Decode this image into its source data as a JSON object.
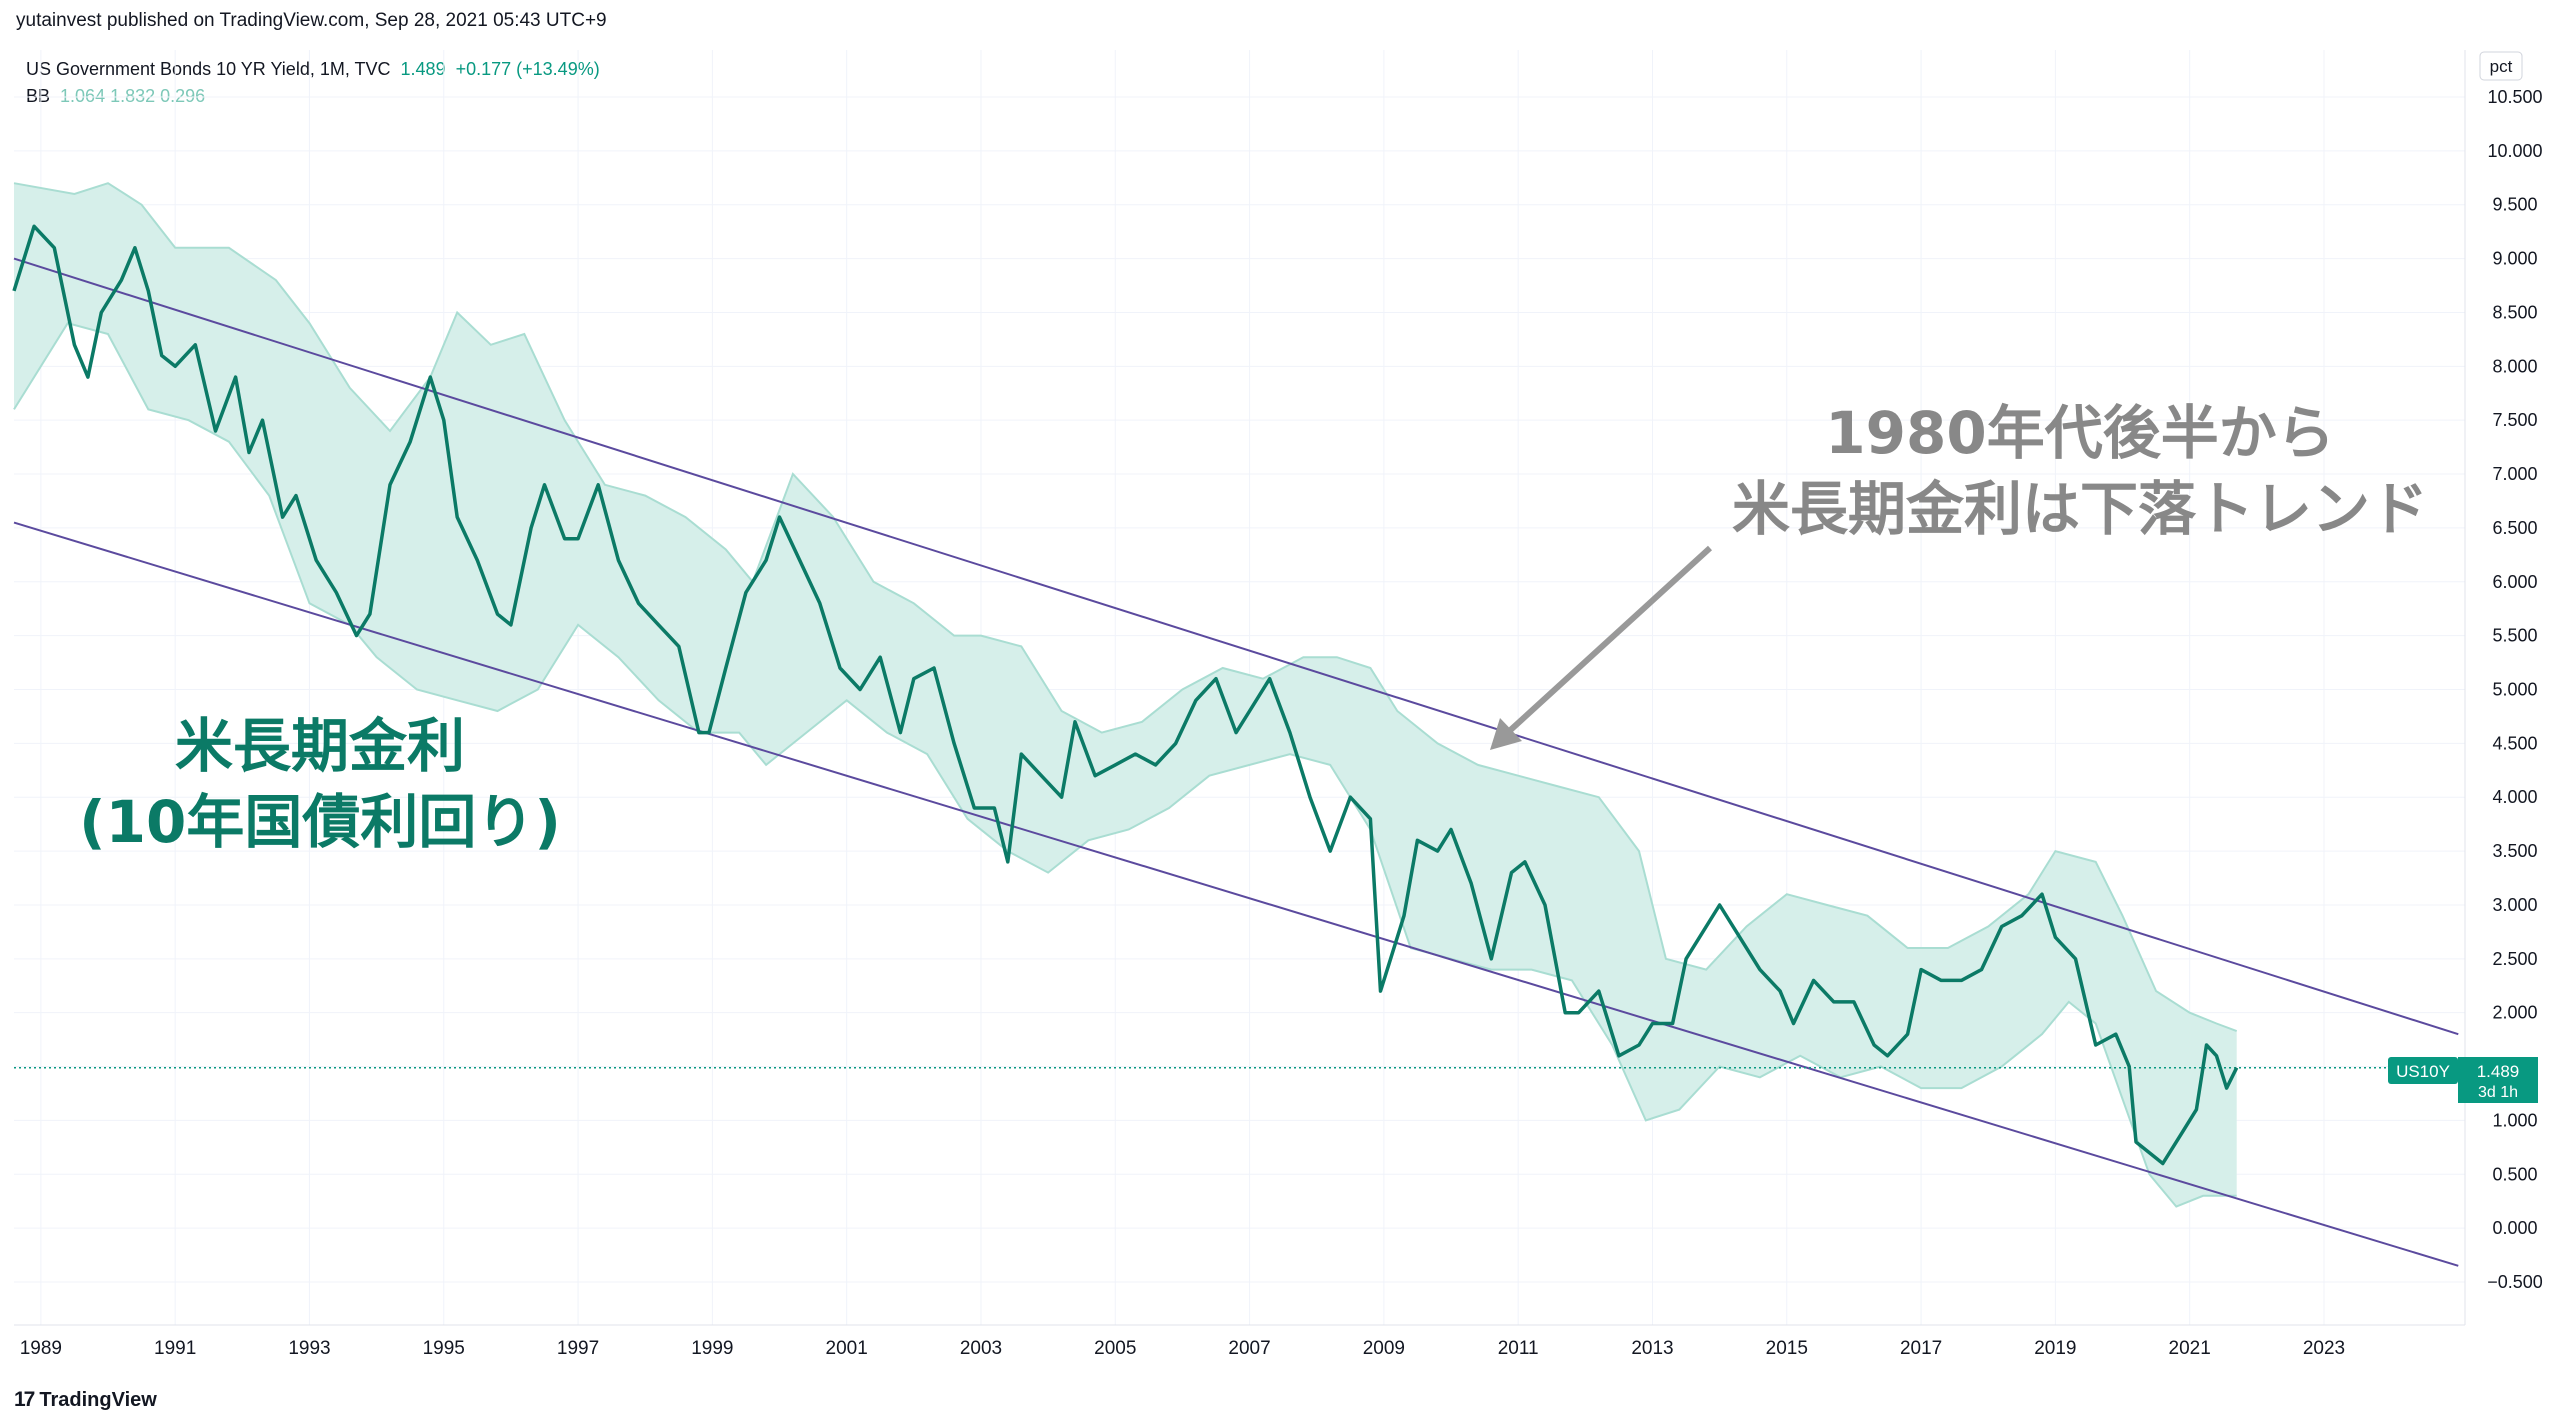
{
  "header": {
    "published": "yutainvest published on TradingView.com, Sep 28, 2021 05:43 UTC+9"
  },
  "legend": {
    "symbol": "US Government Bonds 10 YR Yield, 1M, TVC",
    "last": "1.489",
    "change": "+0.177 (+13.49%)",
    "bb_label": "BB",
    "bb_values": "1.064  1.832  0.296"
  },
  "annotations": {
    "left_line1": "米長期金利",
    "left_line2": "(10年国債利回り)",
    "right_line1": "1980年代後半から",
    "right_line2": "米長期金利は下落トレンド"
  },
  "price_label": {
    "ticker": "US10Y",
    "value": "1.489",
    "countdown": "3d 1h"
  },
  "footer": {
    "brand": "TradingView"
  },
  "colors": {
    "line": "#0b7a66",
    "band_fill": "#d6efea",
    "band_edge": "#a9ddd2",
    "trend": "#5b4a9e",
    "accent": "#089981",
    "grid": "#f0f3fa"
  },
  "chart_data": {
    "type": "line",
    "title": "US Government Bonds 10 YR Yield, 1M, TVC",
    "ylabel": "pct",
    "ylim": [
      -0.5,
      10.5
    ],
    "xlim": [
      1988.6,
      2025.1
    ],
    "y_ticks": [
      10.5,
      10.0,
      9.5,
      9.0,
      8.5,
      8.0,
      7.5,
      7.0,
      6.5,
      6.0,
      5.5,
      5.0,
      4.5,
      4.0,
      3.5,
      3.0,
      2.5,
      2.0,
      1.5,
      1.0,
      0.5,
      0.0,
      -0.5
    ],
    "y_tick_labels": [
      "10.500",
      "10.000",
      "9.500",
      "9.000",
      "8.500",
      "8.000",
      "7.500",
      "7.000",
      "6.500",
      "6.000",
      "5.500",
      "5.000",
      "4.500",
      "4.000",
      "3.500",
      "3.000",
      "2.500",
      "2.000",
      "1.500",
      "1.000",
      "0.500",
      "0.000",
      "−0.500"
    ],
    "x_ticks": [
      1989,
      1991,
      1993,
      1995,
      1997,
      1999,
      2001,
      2003,
      2005,
      2007,
      2009,
      2011,
      2013,
      2015,
      2017,
      2019,
      2021,
      2023
    ],
    "x_tick_labels": [
      "1989",
      "1991",
      "1993",
      "1995",
      "1997",
      "1999",
      "2001",
      "2003",
      "2005",
      "2007",
      "2009",
      "2011",
      "2013",
      "2015",
      "2017",
      "2019",
      "2021",
      "2023"
    ],
    "current_value": 1.489,
    "series": [
      {
        "name": "US10Y",
        "x": [
          1988.6,
          1988.9,
          1989.2,
          1989.5,
          1989.7,
          1989.9,
          1990.2,
          1990.4,
          1990.6,
          1990.8,
          1991.0,
          1991.3,
          1991.6,
          1991.9,
          1992.1,
          1992.3,
          1992.6,
          1992.8,
          1993.1,
          1993.4,
          1993.7,
          1993.9,
          1994.2,
          1994.5,
          1994.8,
          1995.0,
          1995.2,
          1995.5,
          1995.8,
          1996.0,
          1996.3,
          1996.5,
          1996.8,
          1997.0,
          1997.3,
          1997.6,
          1997.9,
          1998.2,
          1998.5,
          1998.8,
          1998.95,
          1999.2,
          1999.5,
          1999.8,
          2000.0,
          2000.3,
          2000.6,
          2000.9,
          2001.2,
          2001.5,
          2001.8,
          2002.0,
          2002.3,
          2002.6,
          2002.9,
          2003.2,
          2003.4,
          2003.6,
          2003.9,
          2004.2,
          2004.4,
          2004.7,
          2005.0,
          2005.3,
          2005.6,
          2005.9,
          2006.2,
          2006.5,
          2006.8,
          2007.0,
          2007.3,
          2007.6,
          2007.9,
          2008.2,
          2008.5,
          2008.8,
          2008.95,
          2009.1,
          2009.3,
          2009.5,
          2009.8,
          2010.0,
          2010.3,
          2010.6,
          2010.9,
          2011.1,
          2011.4,
          2011.7,
          2011.9,
          2012.2,
          2012.5,
          2012.8,
          2013.0,
          2013.3,
          2013.5,
          2013.7,
          2014.0,
          2014.3,
          2014.6,
          2014.9,
          2015.1,
          2015.4,
          2015.7,
          2016.0,
          2016.3,
          2016.5,
          2016.8,
          2017.0,
          2017.3,
          2017.6,
          2017.9,
          2018.2,
          2018.5,
          2018.8,
          2019.0,
          2019.3,
          2019.6,
          2019.9,
          2020.1,
          2020.2,
          2020.4,
          2020.6,
          2020.9,
          2021.1,
          2021.25,
          2021.4,
          2021.55,
          2021.7
        ],
        "values": [
          8.7,
          9.3,
          9.1,
          8.2,
          7.9,
          8.5,
          8.8,
          9.1,
          8.7,
          8.1,
          8.0,
          8.2,
          7.4,
          7.9,
          7.2,
          7.5,
          6.6,
          6.8,
          6.2,
          5.9,
          5.5,
          5.7,
          6.9,
          7.3,
          7.9,
          7.5,
          6.6,
          6.2,
          5.7,
          5.6,
          6.5,
          6.9,
          6.4,
          6.4,
          6.9,
          6.2,
          5.8,
          5.6,
          5.4,
          4.6,
          4.6,
          5.2,
          5.9,
          6.2,
          6.6,
          6.2,
          5.8,
          5.2,
          5.0,
          5.3,
          4.6,
          5.1,
          5.2,
          4.5,
          3.9,
          3.9,
          3.4,
          4.4,
          4.2,
          4.0,
          4.7,
          4.2,
          4.3,
          4.4,
          4.3,
          4.5,
          4.9,
          5.1,
          4.6,
          4.8,
          5.1,
          4.6,
          4.0,
          3.5,
          4.0,
          3.8,
          2.2,
          2.5,
          2.9,
          3.6,
          3.5,
          3.7,
          3.2,
          2.5,
          3.3,
          3.4,
          3.0,
          2.0,
          2.0,
          2.2,
          1.6,
          1.7,
          1.9,
          1.9,
          2.5,
          2.7,
          3.0,
          2.7,
          2.4,
          2.2,
          1.9,
          2.3,
          2.1,
          2.1,
          1.7,
          1.6,
          1.8,
          2.4,
          2.3,
          2.3,
          2.4,
          2.8,
          2.9,
          3.1,
          2.7,
          2.5,
          1.7,
          1.8,
          1.5,
          0.8,
          0.7,
          0.6,
          0.9,
          1.1,
          1.7,
          1.6,
          1.3,
          1.489
        ]
      },
      {
        "name": "BB upper",
        "x": [
          1988.6,
          1989.5,
          1990.0,
          1990.5,
          1991.0,
          1991.8,
          1992.5,
          1993.0,
          1993.6,
          1994.2,
          1994.8,
          1995.2,
          1995.7,
          1996.2,
          1996.8,
          1997.4,
          1998.0,
          1998.6,
          1999.2,
          1999.6,
          2000.2,
          2000.8,
          2001.4,
          2002.0,
          2002.6,
          2003.0,
          2003.6,
          2004.2,
          2004.8,
          2005.4,
          2006.0,
          2006.6,
          2007.2,
          2007.8,
          2008.3,
          2008.8,
          2009.2,
          2009.8,
          2010.4,
          2011.0,
          2011.6,
          2012.2,
          2012.8,
          2013.2,
          2013.8,
          2014.4,
          2015.0,
          2015.6,
          2016.2,
          2016.8,
          2017.4,
          2018.0,
          2018.6,
          2019.0,
          2019.6,
          2020.0,
          2020.5,
          2021.0,
          2021.4,
          2021.7
        ],
        "values": [
          9.7,
          9.6,
          9.7,
          9.5,
          9.1,
          9.1,
          8.8,
          8.4,
          7.8,
          7.4,
          7.9,
          8.5,
          8.2,
          8.3,
          7.5,
          6.9,
          6.8,
          6.6,
          6.3,
          6.0,
          7.0,
          6.6,
          6.0,
          5.8,
          5.5,
          5.5,
          5.4,
          4.8,
          4.6,
          4.7,
          5.0,
          5.2,
          5.1,
          5.3,
          5.3,
          5.2,
          4.8,
          4.5,
          4.3,
          4.2,
          4.1,
          4.0,
          3.5,
          2.5,
          2.4,
          2.8,
          3.1,
          3.0,
          2.9,
          2.6,
          2.6,
          2.8,
          3.1,
          3.5,
          3.4,
          2.9,
          2.2,
          2.0,
          1.9,
          1.83
        ]
      },
      {
        "name": "BB lower",
        "x": [
          1988.6,
          1989.4,
          1990.0,
          1990.6,
          1991.2,
          1991.8,
          1992.4,
          1993.0,
          1993.6,
          1994.0,
          1994.6,
          1995.2,
          1995.8,
          1996.4,
          1997.0,
          1997.6,
          1998.2,
          1998.8,
          1999.4,
          1999.8,
          2000.4,
          2001.0,
          2001.6,
          2002.2,
          2002.8,
          2003.4,
          2004.0,
          2004.6,
          2005.2,
          2005.8,
          2006.4,
          2007.0,
          2007.6,
          2008.2,
          2008.8,
          2009.4,
          2010.0,
          2010.6,
          2011.2,
          2011.8,
          2012.4,
          2012.9,
          2013.4,
          2014.0,
          2014.6,
          2015.2,
          2015.8,
          2016.4,
          2017.0,
          2017.6,
          2018.2,
          2018.8,
          2019.2,
          2019.6,
          2020.0,
          2020.4,
          2020.8,
          2021.2,
          2021.7
        ],
        "values": [
          7.6,
          8.4,
          8.3,
          7.6,
          7.5,
          7.3,
          6.8,
          5.8,
          5.6,
          5.3,
          5.0,
          4.9,
          4.8,
          5.0,
          5.6,
          5.3,
          4.9,
          4.6,
          4.6,
          4.3,
          4.6,
          4.9,
          4.6,
          4.4,
          3.8,
          3.5,
          3.3,
          3.6,
          3.7,
          3.9,
          4.2,
          4.3,
          4.4,
          4.3,
          3.7,
          2.6,
          2.5,
          2.4,
          2.4,
          2.3,
          1.7,
          1.0,
          1.1,
          1.5,
          1.4,
          1.6,
          1.4,
          1.5,
          1.3,
          1.3,
          1.5,
          1.8,
          2.1,
          1.9,
          1.2,
          0.5,
          0.2,
          0.3,
          0.3
        ]
      },
      {
        "name": "Upper trend line",
        "x": [
          1988.6,
          2025.0
        ],
        "values": [
          9.0,
          1.8
        ]
      },
      {
        "name": "Lower trend line",
        "x": [
          1988.6,
          2025.0
        ],
        "values": [
          6.55,
          -0.35
        ]
      }
    ]
  }
}
